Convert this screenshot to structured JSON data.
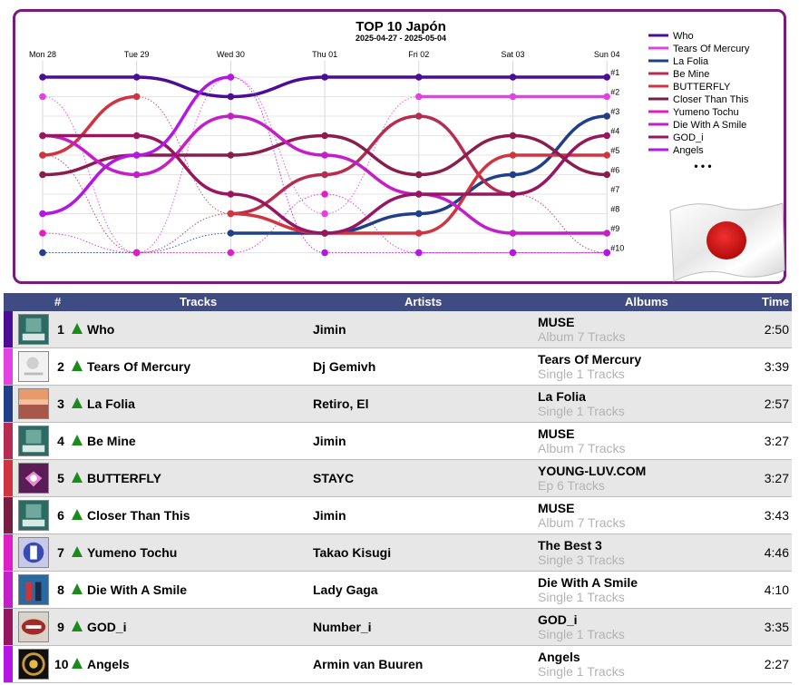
{
  "chart_data": {
    "type": "line",
    "title": "TOP 10 Japón",
    "subtitle": "2025-04-27 - 2025-05-04",
    "categories": [
      "Mon 28",
      "Tue 29",
      "Wed 30",
      "Thu 01",
      "Fri 02",
      "Sat 03",
      "Sun 04"
    ],
    "rank_labels": [
      "#1",
      "#2",
      "#3",
      "#4",
      "#5",
      "#6",
      "#7",
      "#8",
      "#9",
      "#10"
    ],
    "y_axis": "rank",
    "ylim": [
      1,
      10
    ],
    "series": [
      {
        "name": "Who",
        "color": "#4b0c96",
        "values": [
          1,
          1,
          2,
          1,
          1,
          1,
          1
        ]
      },
      {
        "name": "Tears Of Mercury",
        "color": "#e341e3",
        "values": [
          2,
          10,
          1,
          8,
          2,
          2,
          2
        ]
      },
      {
        "name": "La Folia",
        "color": "#1f3f8a",
        "values": [
          10,
          10,
          9,
          9,
          8,
          6,
          3
        ]
      },
      {
        "name": "Be Mine",
        "color": "#b82b52",
        "values": [
          5,
          10,
          8,
          6,
          3,
          7,
          10
        ]
      },
      {
        "name": "BUTTERFLY",
        "color": "#d1333f",
        "values": [
          5,
          2,
          8,
          9,
          9,
          5,
          5
        ]
      },
      {
        "name": "Closer Than This",
        "color": "#8a1d4e",
        "values": [
          6,
          5,
          5,
          4,
          6,
          4,
          6
        ]
      },
      {
        "name": "Yumeno Tochu",
        "color": "#e01ec8",
        "values": [
          9,
          10,
          10,
          7,
          10,
          10,
          10
        ]
      },
      {
        "name": "Die With A Smile",
        "color": "#c41ec8",
        "values": [
          4,
          6,
          3,
          5,
          7,
          9,
          9
        ]
      },
      {
        "name": "GOD_i",
        "color": "#96175f",
        "values": [
          4,
          4,
          7,
          9,
          7,
          7,
          4
        ]
      },
      {
        "name": "Angels",
        "color": "#b416e6",
        "values": [
          8,
          5,
          1,
          10,
          10,
          10,
          10
        ]
      }
    ],
    "legend": [
      {
        "label": "Who",
        "color": "#4b0c96"
      },
      {
        "label": "Tears Of Mercury",
        "color": "#e341e3"
      },
      {
        "label": "La Folia",
        "color": "#1f3f8a"
      },
      {
        "label": "Be Mine",
        "color": "#b82b52"
      },
      {
        "label": "BUTTERFLY",
        "color": "#d1333f"
      },
      {
        "label": "Closer Than This",
        "color": "#7a1d45"
      },
      {
        "label": "Yumeno Tochu",
        "color": "#e01ec8"
      },
      {
        "label": "Die With A Smile",
        "color": "#c41ec8"
      },
      {
        "label": "GOD_i",
        "color": "#96175f"
      },
      {
        "label": "Angels",
        "color": "#b416e6"
      }
    ],
    "legend_more": "• • •",
    "legend_position": "right",
    "grid": true
  },
  "table": {
    "headers": {
      "rank": "#",
      "tracks": "Tracks",
      "artists": "Artists",
      "albums": "Albums",
      "time": "Time"
    },
    "rows": [
      {
        "rank": "1",
        "track": "Who",
        "artist": "Jimin",
        "album": "MUSE",
        "album_sub": "Album 7 Tracks",
        "time": "2:50",
        "bar": "#4b0c96",
        "cover": "cover-muse"
      },
      {
        "rank": "2",
        "track": "Tears Of Mercury",
        "artist": "Dj Gemivh",
        "album": "Tears Of Mercury",
        "album_sub": "Single 1 Tracks",
        "time": "3:39",
        "bar": "#e341e3",
        "cover": "cover-tears"
      },
      {
        "rank": "3",
        "track": "La Folia",
        "artist": "Retiro, El",
        "album": "La Folia",
        "album_sub": "Single 1 Tracks",
        "time": "2:57",
        "bar": "#1f3f8a",
        "cover": "cover-lafolia"
      },
      {
        "rank": "4",
        "track": "Be Mine",
        "artist": "Jimin",
        "album": "MUSE",
        "album_sub": "Album 7 Tracks",
        "time": "3:27",
        "bar": "#b82b52",
        "cover": "cover-muse"
      },
      {
        "rank": "5",
        "track": "BUTTERFLY",
        "artist": "STAYC",
        "album": "YOUNG-LUV.COM",
        "album_sub": "Ep 6 Tracks",
        "time": "3:27",
        "bar": "#d1333f",
        "cover": "cover-stayc"
      },
      {
        "rank": "6",
        "track": "Closer Than This",
        "artist": "Jimin",
        "album": "MUSE",
        "album_sub": "Album 7 Tracks",
        "time": "3:43",
        "bar": "#7a1d45",
        "cover": "cover-muse"
      },
      {
        "rank": "7",
        "track": "Yumeno Tochu",
        "artist": "Takao Kisugi",
        "album": "The Best 3",
        "album_sub": "Single 3 Tracks",
        "time": "4:46",
        "bar": "#e01ec8",
        "cover": "cover-best3"
      },
      {
        "rank": "8",
        "track": "Die With A Smile",
        "artist": "Lady Gaga",
        "album": "Die With A Smile",
        "album_sub": "Single 1 Tracks",
        "time": "4:10",
        "bar": "#c41ec8",
        "cover": "cover-gaga"
      },
      {
        "rank": "9",
        "track": "GOD_i",
        "artist": "Number_i",
        "album": "GOD_i",
        "album_sub": "Single 1 Tracks",
        "time": "3:35",
        "bar": "#96175f",
        "cover": "cover-godi"
      },
      {
        "rank": "10",
        "track": "Angels",
        "artist": "Armin van Buuren",
        "album": "Angels",
        "album_sub": "Single 1 Tracks",
        "time": "2:27",
        "bar": "#b416e6",
        "cover": "cover-angels"
      }
    ]
  }
}
